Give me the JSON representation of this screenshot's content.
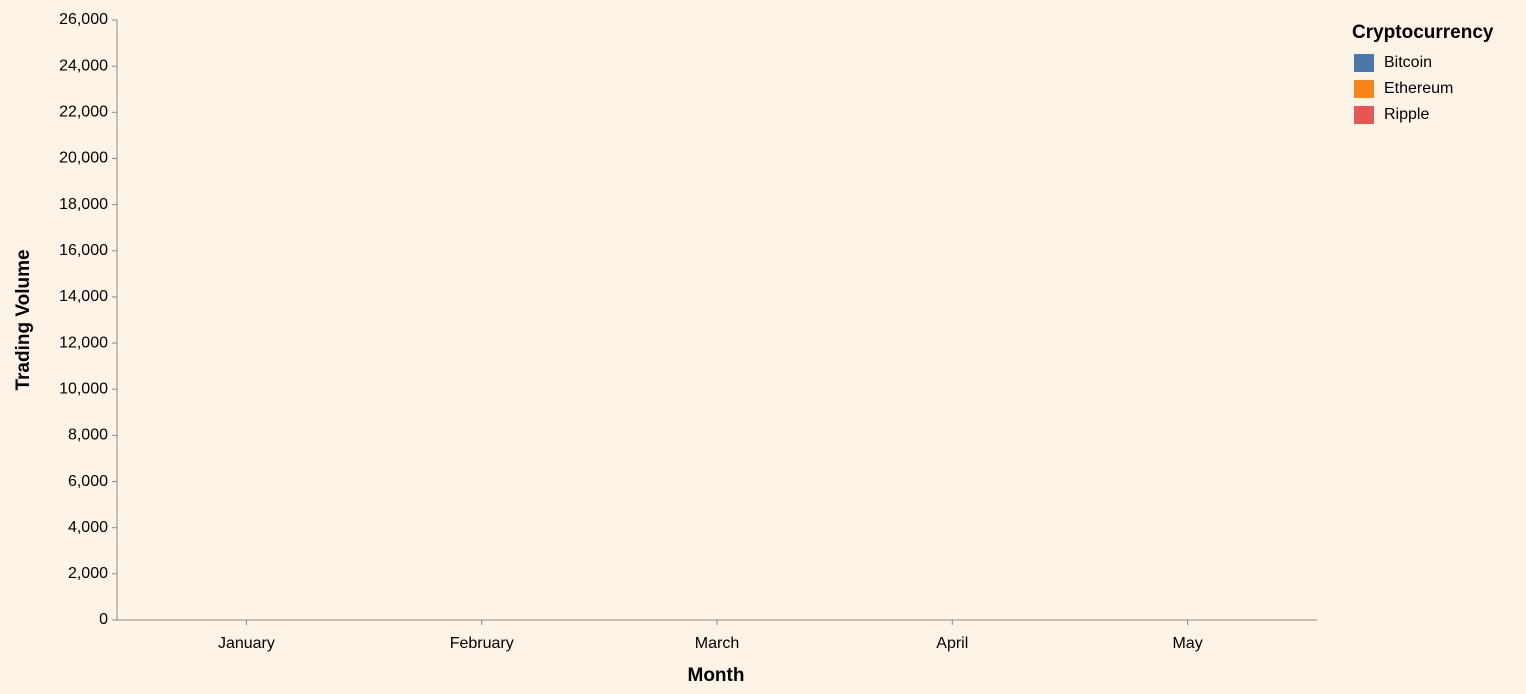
{
  "chart_data": {
    "type": "bar",
    "stacked": true,
    "x_label": "Month",
    "y_label": "Trading Volume",
    "categories": [
      "January",
      "February",
      "March",
      "April",
      "May"
    ],
    "series": [
      {
        "name": "Bitcoin",
        "color": "#4c78a8",
        "values": [
          null,
          null,
          null,
          null,
          null
        ]
      },
      {
        "name": "Ethereum",
        "color": "#f58518",
        "values": [
          null,
          null,
          null,
          null,
          null
        ]
      },
      {
        "name": "Ripple",
        "color": "#e45756",
        "values": [
          null,
          null,
          null,
          null,
          null
        ]
      }
    ],
    "legend_title": "Cryptocurrency",
    "legend_position": "right",
    "ylim": [
      0,
      26000
    ],
    "yticks": [
      0,
      {
        "value": 2000,
        "label": "2,000"
      },
      {
        "value": 4000,
        "label": "4,000"
      },
      {
        "value": 6000,
        "label": "6,000"
      },
      {
        "value": 8000,
        "label": "8,000"
      },
      {
        "value": 10000,
        "label": "10,000"
      },
      {
        "value": 12000,
        "label": "12,000"
      },
      {
        "value": 14000,
        "label": "14,000"
      },
      {
        "value": 16000,
        "label": "16,000"
      },
      {
        "value": 18000,
        "label": "18,000"
      },
      {
        "value": 20000,
        "label": "20,000"
      },
      {
        "value": 22000,
        "label": "22,000"
      },
      {
        "value": 24000,
        "label": "24,000"
      },
      {
        "value": 26000,
        "label": "26,000"
      }
    ],
    "grid": false
  }
}
